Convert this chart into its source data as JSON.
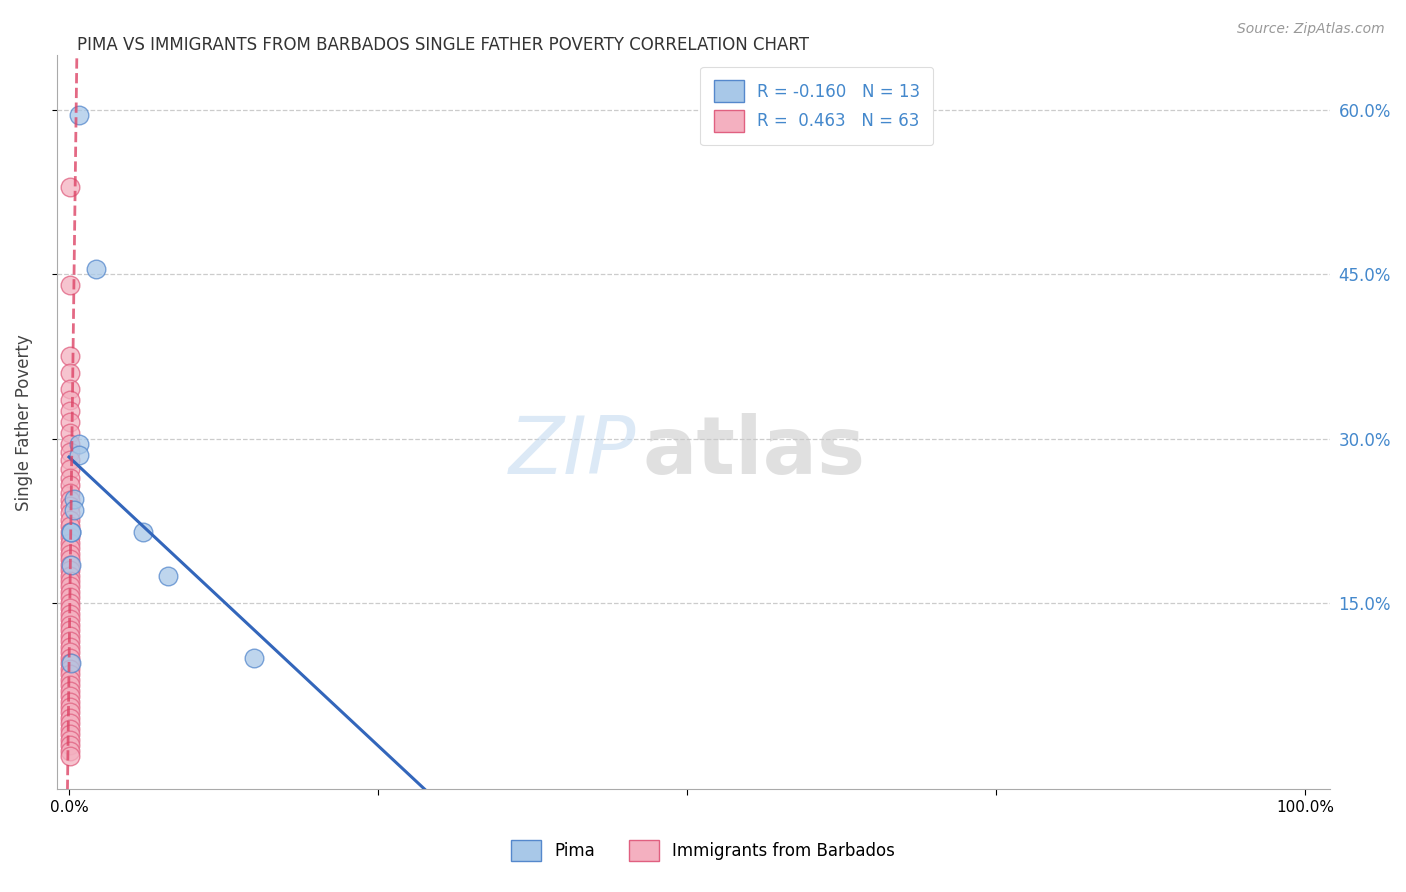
{
  "title": "PIMA VS IMMIGRANTS FROM BARBADOS SINGLE FATHER POVERTY CORRELATION CHART",
  "source": "Source: ZipAtlas.com",
  "ylabel": "Single Father Poverty",
  "legend_pima": "Pima",
  "legend_barbados": "Immigrants from Barbados",
  "R_pima": -0.16,
  "N_pima": 13,
  "R_barbados": 0.463,
  "N_barbados": 63,
  "xmin": 0.0,
  "xmax": 1.0,
  "ymin": 0.0,
  "ymax": 0.65,
  "yticks": [
    0.15,
    0.3,
    0.45,
    0.6
  ],
  "ytick_labels": [
    "15.0%",
    "30.0%",
    "45.0%",
    "60.0%"
  ],
  "pima_color": "#a8c8e8",
  "barbados_color": "#f4b0c0",
  "pima_edge_color": "#5588cc",
  "barbados_edge_color": "#e06080",
  "trend_pima_color": "#3366bb",
  "trend_barbados_color": "#dd4466",
  "pima_x": [
    0.008,
    0.022,
    0.008,
    0.008,
    0.004,
    0.004,
    0.002,
    0.002,
    0.002,
    0.002,
    0.06,
    0.08,
    0.15
  ],
  "pima_y": [
    0.595,
    0.455,
    0.295,
    0.285,
    0.245,
    0.235,
    0.215,
    0.215,
    0.185,
    0.095,
    0.215,
    0.175,
    0.1
  ],
  "barbados_x": [
    0.001,
    0.001,
    0.001,
    0.001,
    0.001,
    0.001,
    0.001,
    0.001,
    0.001,
    0.001,
    0.001,
    0.001,
    0.001,
    0.001,
    0.001,
    0.001,
    0.001,
    0.001,
    0.001,
    0.001,
    0.001,
    0.001,
    0.001,
    0.001,
    0.001,
    0.001,
    0.001,
    0.001,
    0.001,
    0.001,
    0.001,
    0.001,
    0.001,
    0.001,
    0.001,
    0.001,
    0.001,
    0.001,
    0.001,
    0.001,
    0.001,
    0.001,
    0.001,
    0.001,
    0.001,
    0.001,
    0.001,
    0.001,
    0.001,
    0.001,
    0.001,
    0.001,
    0.001,
    0.001,
    0.001,
    0.001,
    0.001,
    0.001,
    0.001,
    0.001,
    0.001,
    0.001,
    0.001
  ],
  "barbados_y": [
    0.53,
    0.44,
    0.375,
    0.36,
    0.345,
    0.335,
    0.325,
    0.315,
    0.305,
    0.295,
    0.288,
    0.28,
    0.272,
    0.264,
    0.258,
    0.25,
    0.244,
    0.238,
    0.232,
    0.226,
    0.22,
    0.215,
    0.21,
    0.205,
    0.2,
    0.195,
    0.19,
    0.185,
    0.18,
    0.175,
    0.17,
    0.165,
    0.16,
    0.155,
    0.15,
    0.145,
    0.14,
    0.135,
    0.13,
    0.125,
    0.12,
    0.115,
    0.11,
    0.105,
    0.1,
    0.095,
    0.09,
    0.085,
    0.08,
    0.075,
    0.07,
    0.065,
    0.06,
    0.055,
    0.05,
    0.045,
    0.04,
    0.035,
    0.03,
    0.025,
    0.02,
    0.015,
    0.01
  ]
}
